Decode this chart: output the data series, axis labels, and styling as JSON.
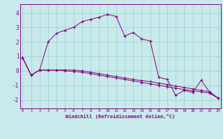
{
  "xlabel": "Windchill (Refroidissement éolien,°C)",
  "bg_color": "#c8eaea",
  "line_color": "#800080",
  "grid_color": "#9ecece",
  "series1": [
    0.9,
    -0.3,
    0.05,
    2.0,
    2.6,
    2.8,
    3.0,
    3.4,
    3.55,
    3.7,
    3.9,
    3.75,
    2.4,
    2.65,
    2.2,
    2.05,
    -0.45,
    -0.6,
    -1.7,
    -1.35,
    -1.5,
    -0.65,
    -1.5,
    -1.9
  ],
  "series2": [
    0.9,
    -0.3,
    0.05,
    0.05,
    0.05,
    0.0,
    -0.05,
    -0.1,
    -0.2,
    -0.3,
    -0.4,
    -0.5,
    -0.6,
    -0.7,
    -0.8,
    -0.9,
    -1.0,
    -1.1,
    -1.2,
    -1.3,
    -1.38,
    -1.45,
    -1.55,
    -1.9
  ],
  "series3": [
    0.9,
    -0.3,
    0.05,
    0.05,
    0.05,
    0.05,
    0.05,
    0.0,
    -0.1,
    -0.2,
    -0.3,
    -0.4,
    -0.5,
    -0.6,
    -0.68,
    -0.75,
    -0.85,
    -0.95,
    -1.05,
    -1.15,
    -1.25,
    -1.35,
    -1.45,
    -1.9
  ],
  "xticks": [
    0,
    1,
    2,
    3,
    4,
    5,
    6,
    7,
    8,
    9,
    10,
    11,
    12,
    13,
    14,
    15,
    16,
    17,
    18,
    19,
    20,
    21,
    22,
    23
  ],
  "yticks": [
    -2,
    -1,
    0,
    1,
    2,
    3,
    4
  ],
  "ylim": [
    -2.6,
    4.6
  ],
  "xlim": [
    -0.3,
    23.3
  ]
}
